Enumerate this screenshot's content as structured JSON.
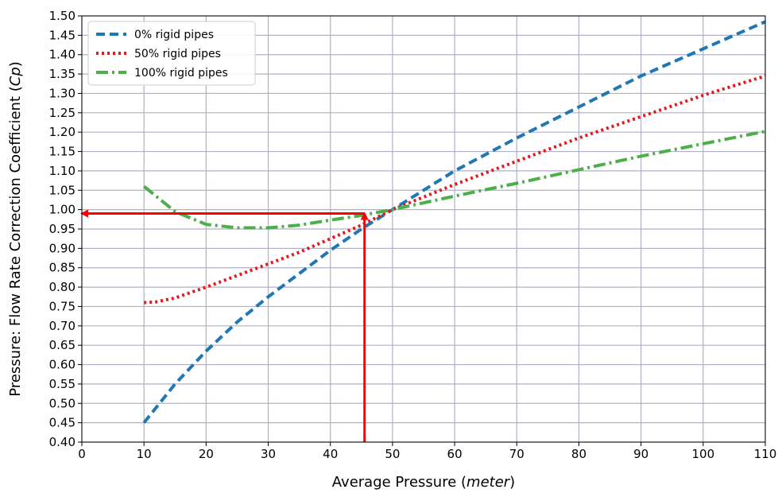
{
  "chart_data": {
    "type": "line",
    "title": "",
    "xlabel": {
      "text": "Average Pressure (",
      "italic": "meter",
      "suffix": ")"
    },
    "ylabel": {
      "text": "Pressure: Flow Rate Correction Coefficient (",
      "italic": "Cp",
      "suffix": ")"
    },
    "xlim": [
      0,
      110
    ],
    "ylim": [
      0.4,
      1.5
    ],
    "xticks": [
      0,
      10,
      20,
      30,
      40,
      50,
      60,
      70,
      80,
      90,
      100,
      110
    ],
    "xtick_labels": [
      "0",
      "10",
      "20",
      "30",
      "40",
      "50",
      "60",
      "70",
      "80",
      "90",
      "100",
      "110"
    ],
    "yticks": [
      0.4,
      0.45,
      0.5,
      0.55,
      0.6,
      0.65,
      0.7,
      0.75,
      0.8,
      0.85,
      0.9,
      0.95,
      1.0,
      1.05,
      1.1,
      1.15,
      1.2,
      1.25,
      1.3,
      1.35,
      1.4,
      1.45,
      1.5
    ],
    "ytick_labels": [
      "0.40",
      "0.45",
      "0.50",
      "0.55",
      "0.60",
      "0.65",
      "0.70",
      "0.75",
      "0.80",
      "0.85",
      "0.90",
      "0.95",
      "1.00",
      "1.05",
      "1.10",
      "1.15",
      "1.20",
      "1.25",
      "1.30",
      "1.35",
      "1.40",
      "1.45",
      "1.50"
    ],
    "grid": true,
    "legend_position": "top-left",
    "series": [
      {
        "name": "0% rigid pipes",
        "color": "#1f77b4",
        "style": "dashed",
        "x": [
          10,
          15,
          20,
          25,
          30,
          35,
          40,
          45,
          50,
          60,
          70,
          80,
          90,
          100,
          110
        ],
        "y": [
          0.45,
          0.55,
          0.635,
          0.71,
          0.775,
          0.835,
          0.895,
          0.95,
          1.0,
          1.1,
          1.185,
          1.265,
          1.345,
          1.415,
          1.485
        ]
      },
      {
        "name": "50% rigid pipes",
        "color": "#e31a1c",
        "style": "dotted",
        "x": [
          10,
          12,
          15,
          20,
          25,
          30,
          35,
          40,
          45,
          50,
          60,
          70,
          80,
          90,
          100,
          110
        ],
        "y": [
          0.76,
          0.762,
          0.772,
          0.8,
          0.83,
          0.86,
          0.89,
          0.925,
          0.96,
          1.0,
          1.065,
          1.125,
          1.185,
          1.24,
          1.295,
          1.345
        ]
      },
      {
        "name": "100% rigid pipes",
        "color": "#4daf4a",
        "style": "dashdot",
        "x": [
          10,
          15,
          20,
          25,
          30,
          35,
          40,
          45,
          50,
          60,
          70,
          80,
          90,
          100,
          110
        ],
        "y": [
          1.06,
          0.995,
          0.962,
          0.953,
          0.953,
          0.96,
          0.973,
          0.985,
          1.0,
          1.035,
          1.068,
          1.103,
          1.138,
          1.17,
          1.202
        ]
      }
    ],
    "annotations": [
      {
        "type": "arrow",
        "color": "#ff0000",
        "from": [
          45.5,
          0.4
        ],
        "to": [
          45.5,
          0.99
        ]
      },
      {
        "type": "arrow",
        "color": "#ff0000",
        "from": [
          45.5,
          0.99
        ],
        "to": [
          0,
          0.99
        ]
      }
    ]
  }
}
